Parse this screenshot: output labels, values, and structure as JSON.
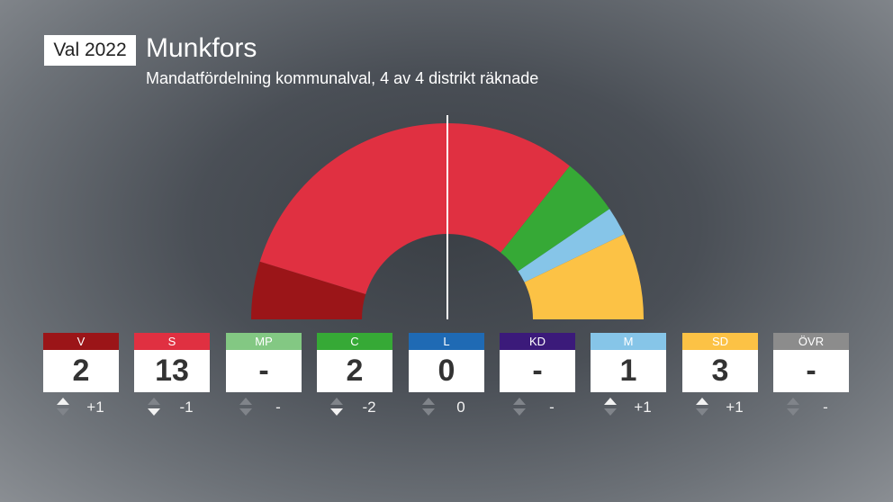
{
  "header": {
    "badge": "Val 2022",
    "title": "Munkfors",
    "subtitle": "Mandatfördelning kommunalval, 4 av 4 distrikt räknade"
  },
  "chart_data": {
    "type": "pie",
    "variant": "semicircle",
    "parties": [
      {
        "code": "V",
        "seats": 2,
        "seats_label": "2",
        "change": "+1",
        "direction": "up",
        "color": "#9b1518"
      },
      {
        "code": "S",
        "seats": 13,
        "seats_label": "13",
        "change": "-1",
        "direction": "down",
        "color": "#e03041"
      },
      {
        "code": "MP",
        "seats": 0,
        "seats_label": "-",
        "change": "-",
        "direction": "none",
        "color": "#83c883"
      },
      {
        "code": "C",
        "seats": 2,
        "seats_label": "2",
        "change": "-2",
        "direction": "down",
        "color": "#36a936"
      },
      {
        "code": "L",
        "seats": 0,
        "seats_label": "0",
        "change": "0",
        "direction": "none",
        "color": "#1f6ab4"
      },
      {
        "code": "KD",
        "seats": 0,
        "seats_label": "-",
        "change": "-",
        "direction": "none",
        "color": "#3b1a7a"
      },
      {
        "code": "M",
        "seats": 1,
        "seats_label": "1",
        "change": "+1",
        "direction": "up",
        "color": "#86c5e8"
      },
      {
        "code": "SD",
        "seats": 3,
        "seats_label": "3",
        "change": "+1",
        "direction": "up",
        "color": "#fcc245"
      },
      {
        "code": "ÖVR",
        "seats": 0,
        "seats_label": "-",
        "change": "-",
        "direction": "none",
        "color": "#8c8c8c"
      }
    ],
    "total_seats": 21,
    "majority_line": true
  }
}
